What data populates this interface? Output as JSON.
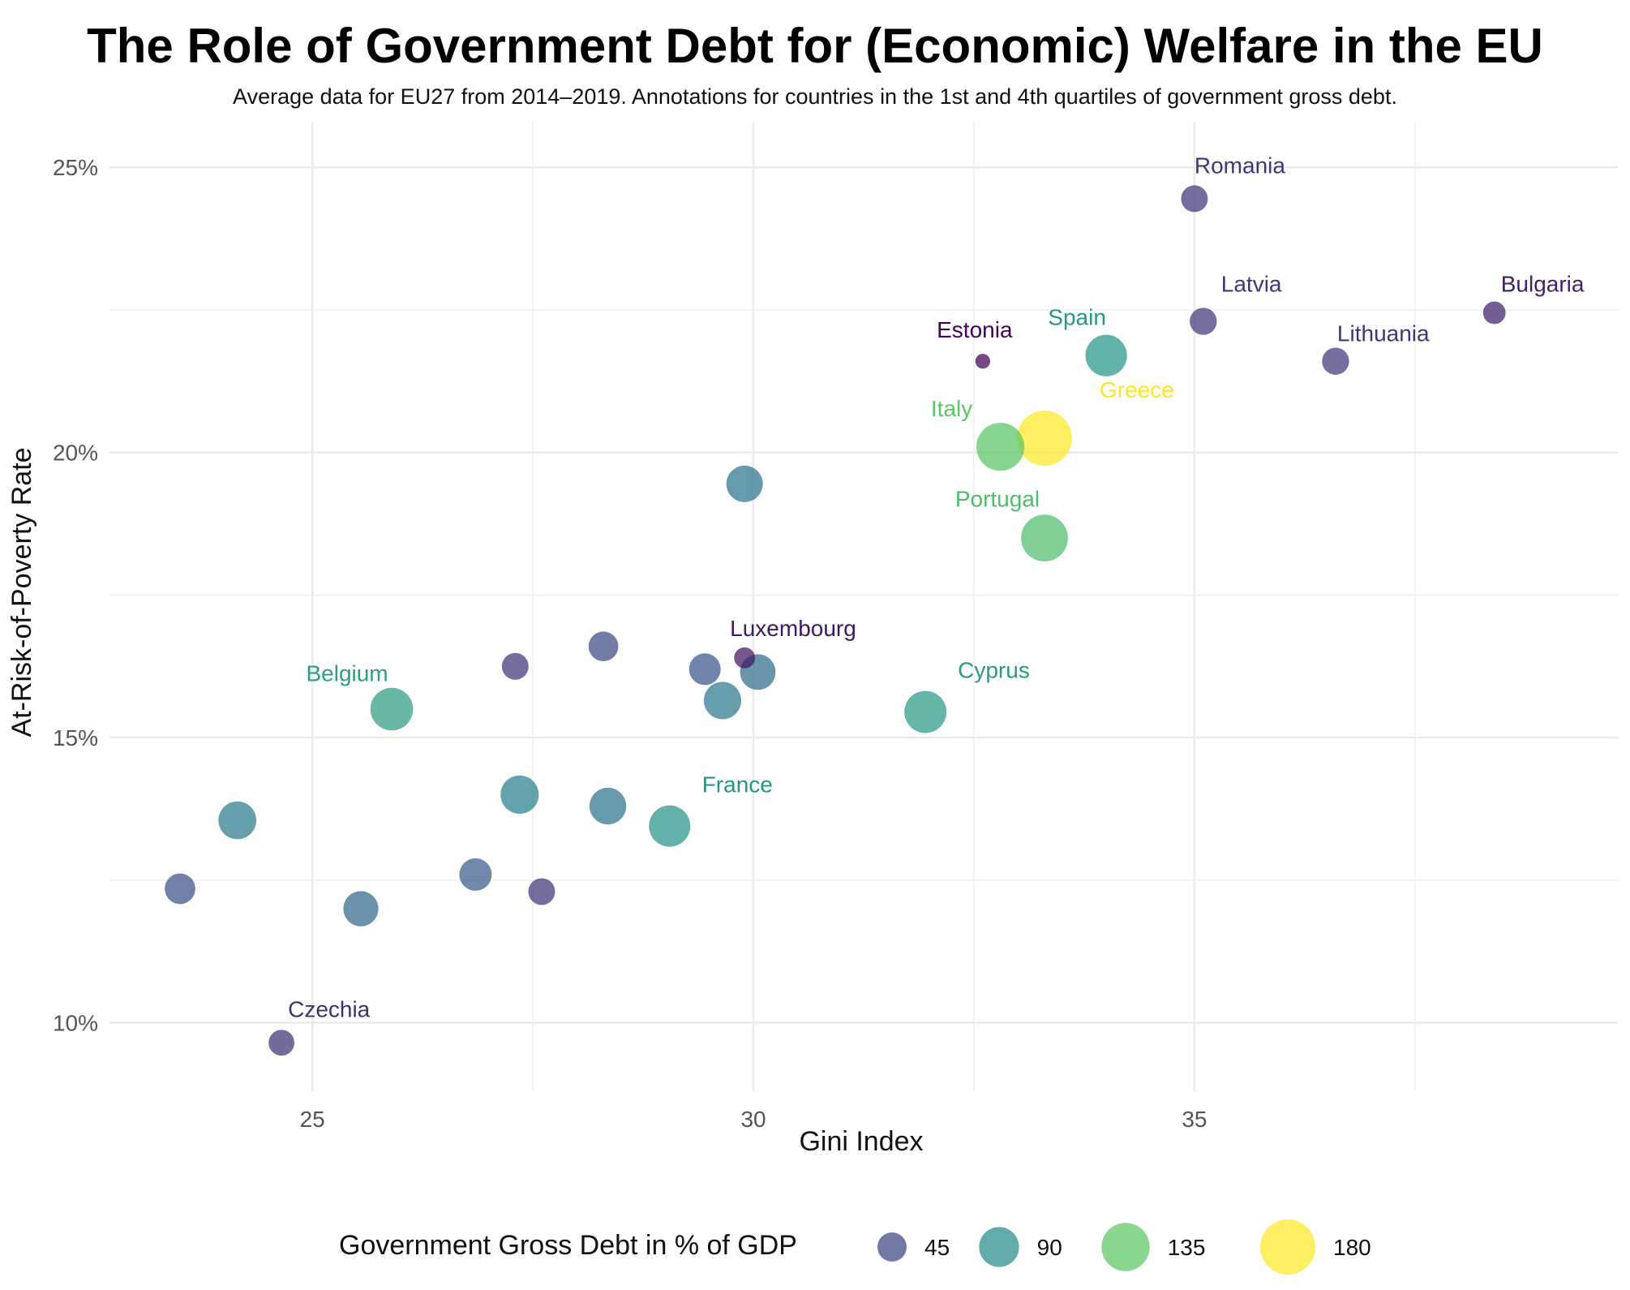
{
  "chart_data": {
    "type": "scatter",
    "title": "The Role of Government Debt for (Economic) Welfare in the EU",
    "subtitle": "Average data for EU27 from 2014–2019. Annotations for countries in the 1st and 4th quartiles of government gross debt.",
    "xlabel": "Gini Index",
    "ylabel": "At-Risk-of-Poverty Rate",
    "xlim": [
      22.7,
      39.8
    ],
    "ylim": [
      8.8,
      25.8
    ],
    "x_ticks": [
      25,
      30,
      35
    ],
    "x_tick_labels": [
      "25",
      "30",
      "35"
    ],
    "y_ticks": [
      10,
      15,
      20,
      25
    ],
    "y_tick_labels": [
      "10%",
      "15%",
      "20%",
      "25%"
    ],
    "grid": true,
    "legend": {
      "title": "Government Gross Debt in % of GDP",
      "position": "bottom",
      "entries": [
        {
          "label": "45",
          "value": 45
        },
        {
          "label": "90",
          "value": 90
        },
        {
          "label": "135",
          "value": 135
        },
        {
          "label": "180",
          "value": 180
        }
      ]
    },
    "points": [
      {
        "label": "Romania",
        "x": 35.0,
        "y": 24.45,
        "debt": 37
      },
      {
        "label": "Latvia",
        "x": 35.1,
        "y": 22.3,
        "debt": 38
      },
      {
        "label": "Bulgaria",
        "x": 38.4,
        "y": 22.45,
        "debt": 25
      },
      {
        "label": "Lithuania",
        "x": 36.6,
        "y": 21.6,
        "debt": 38
      },
      {
        "label": "Estonia",
        "x": 32.6,
        "y": 21.6,
        "debt": 9
      },
      {
        "label": "Spain",
        "x": 34.0,
        "y": 21.7,
        "debt": 98
      },
      {
        "label": "Italy",
        "x": 32.8,
        "y": 20.1,
        "debt": 134
      },
      {
        "label": "Greece",
        "x": 33.3,
        "y": 20.25,
        "debt": 180
      },
      {
        "label": "Portugal",
        "x": 33.3,
        "y": 18.5,
        "debt": 127
      },
      {
        "label": "Luxembourg",
        "x": 29.9,
        "y": 16.4,
        "debt": 21
      },
      {
        "label": "Belgium",
        "x": 25.9,
        "y": 15.5,
        "debt": 104
      },
      {
        "label": "Cyprus",
        "x": 31.95,
        "y": 15.45,
        "debt": 101
      },
      {
        "label": "France",
        "x": 29.05,
        "y": 13.45,
        "debt": 97
      },
      {
        "label": "Czechia",
        "x": 24.65,
        "y": 9.65,
        "debt": 34
      },
      {
        "label": "",
        "x": 29.9,
        "y": 19.45,
        "debt": 74
      },
      {
        "label": "",
        "x": 28.3,
        "y": 16.6,
        "debt": 47
      },
      {
        "label": "",
        "x": 27.3,
        "y": 16.25,
        "debt": 37
      },
      {
        "label": "",
        "x": 29.45,
        "y": 16.2,
        "debt": 54
      },
      {
        "label": "",
        "x": 30.05,
        "y": 16.15,
        "debt": 70
      },
      {
        "label": "",
        "x": 29.65,
        "y": 15.65,
        "debt": 78
      },
      {
        "label": "",
        "x": 27.35,
        "y": 14.0,
        "debt": 82
      },
      {
        "label": "",
        "x": 28.35,
        "y": 13.8,
        "debt": 75
      },
      {
        "label": "",
        "x": 24.15,
        "y": 13.55,
        "debt": 80
      },
      {
        "label": "",
        "x": 23.5,
        "y": 12.35,
        "debt": 50
      },
      {
        "label": "",
        "x": 26.85,
        "y": 12.6,
        "debt": 57
      },
      {
        "label": "",
        "x": 27.6,
        "y": 12.3,
        "debt": 37
      },
      {
        "label": "",
        "x": 25.55,
        "y": 12.0,
        "debt": 68
      }
    ]
  }
}
